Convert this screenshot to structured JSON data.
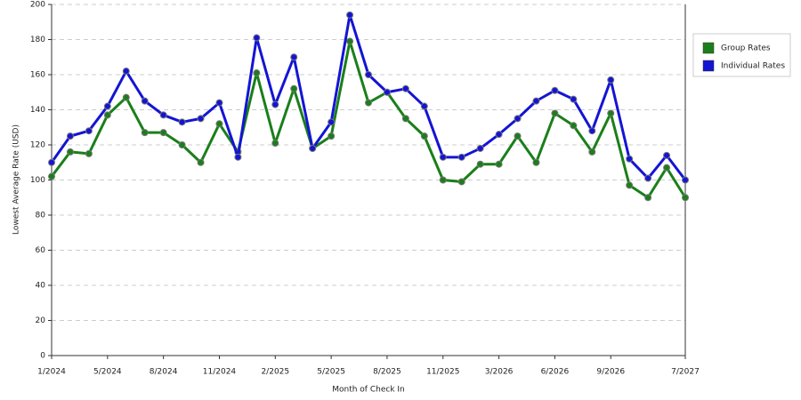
{
  "chart_data": {
    "type": "line",
    "x_label": "Month of Check In",
    "y_label": "Lowest Average Rate (USD)",
    "categories": [
      "1/2024",
      null,
      null,
      "5/2024",
      null,
      null,
      "8/2024",
      null,
      null,
      "11/2024",
      null,
      null,
      "2/2025",
      null,
      null,
      "5/2025",
      null,
      null,
      "8/2025",
      null,
      null,
      "11/2025",
      null,
      null,
      "3/2026",
      null,
      null,
      "6/2026",
      null,
      null,
      "9/2026",
      null,
      null,
      null,
      "7/2027"
    ],
    "series": [
      {
        "name": "Group Rates",
        "color": "#1a7f1a",
        "values": [
          102,
          116,
          115,
          137,
          147,
          127,
          127,
          120,
          110,
          132,
          116,
          161,
          121,
          152,
          118,
          125,
          179,
          144,
          150,
          135,
          125,
          100,
          99,
          109,
          109,
          125,
          110,
          138,
          131,
          116,
          138,
          97,
          90,
          107,
          90
        ]
      },
      {
        "name": "Individual Rates",
        "color": "#1414d4",
        "values": [
          110,
          125,
          128,
          142,
          162,
          145,
          137,
          133,
          135,
          144,
          113,
          181,
          143,
          170,
          118,
          133,
          194,
          160,
          150,
          152,
          142,
          113,
          113,
          118,
          126,
          135,
          145,
          151,
          146,
          128,
          157,
          112,
          101,
          114,
          100
        ]
      }
    ],
    "ylim": [
      0,
      200
    ],
    "yticks": [
      0,
      20,
      40,
      60,
      80,
      100,
      120,
      140,
      160,
      180,
      200
    ],
    "grid": true,
    "legend": "right"
  }
}
